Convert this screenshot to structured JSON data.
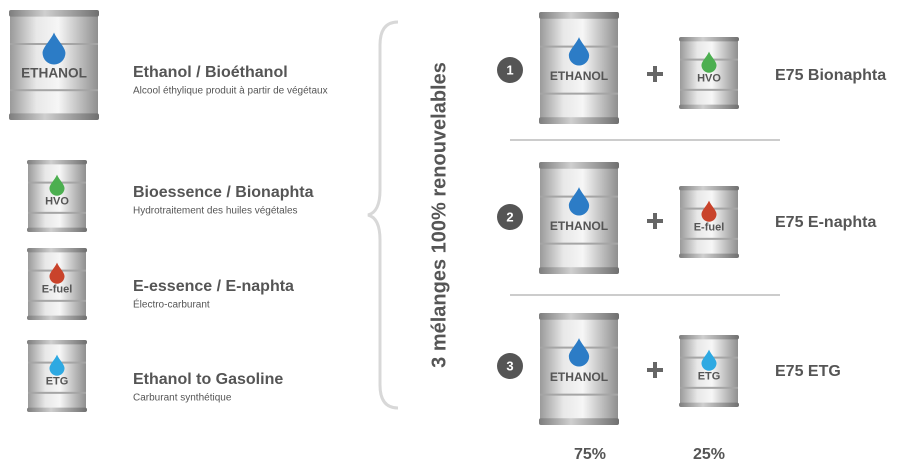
{
  "items": [
    {
      "barrel": "ETHANOL",
      "title": "Ethanol / Bioéthanol",
      "subtitle": "Alcool éthylique produit à partir de végétaux"
    },
    {
      "barrel": "HVO",
      "title": "Bioessence / Bionaphta",
      "subtitle": "Hydrotraitement des huiles végétales"
    },
    {
      "barrel": "E-fuel",
      "title": "E-essence / E-naphta",
      "subtitle": "Électro-carburant"
    },
    {
      "barrel": "ETG",
      "title": "Ethanol to Gasoline",
      "subtitle": "Carburant synthétique"
    }
  ],
  "mixes_title": "3 mélanges 100% renouvelables",
  "mixes": [
    {
      "number": "1",
      "base": "ETHANOL",
      "additive": "HVO",
      "result": "E75 Bionaphta"
    },
    {
      "number": "2",
      "base": "ETHANOL",
      "additive": "E-fuel",
      "result": "E75 E-naphta"
    },
    {
      "number": "3",
      "base": "ETHANOL",
      "additive": "ETG",
      "result": "E75 ETG"
    }
  ],
  "shares": [
    "75%",
    "25%"
  ]
}
